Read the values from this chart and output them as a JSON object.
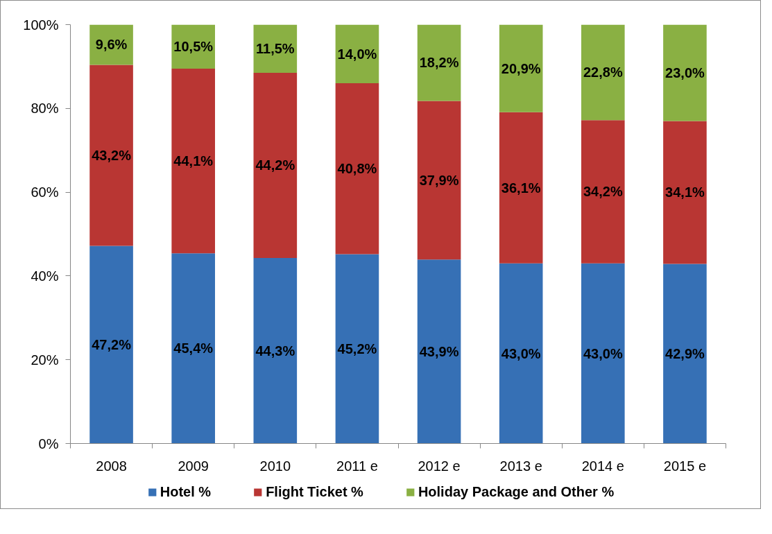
{
  "chart_data": {
    "type": "bar",
    "stacked": true,
    "categories": [
      "2008",
      "2009",
      "2010",
      "2011 e",
      "2012 e",
      "2013 e",
      "2014 e",
      "2015 e"
    ],
    "series": [
      {
        "name": "Hotel %",
        "color": "#3670b5",
        "values": [
          47.2,
          45.4,
          44.3,
          45.2,
          43.9,
          43.0,
          43.0,
          42.9
        ],
        "value_labels": [
          "47,2%",
          "45,4%",
          "44,3%",
          "45,2%",
          "43,9%",
          "43,0%",
          "43,0%",
          "42,9%"
        ]
      },
      {
        "name": "Flight Ticket %",
        "color": "#b93633",
        "values": [
          43.2,
          44.1,
          44.2,
          40.8,
          37.9,
          36.1,
          34.2,
          34.1
        ],
        "value_labels": [
          "43,2%",
          "44,1%",
          "44,2%",
          "40,8%",
          "37,9%",
          "36,1%",
          "34,2%",
          "34,1%"
        ]
      },
      {
        "name": "Holiday Package and Other %",
        "color": "#8ab043",
        "values": [
          9.6,
          10.5,
          11.5,
          14.0,
          18.2,
          20.9,
          22.8,
          23.0
        ],
        "value_labels": [
          "9,6%",
          "10,5%",
          "11,5%",
          "14,0%",
          "18,2%",
          "20,9%",
          "22,8%",
          "23,0%"
        ]
      }
    ],
    "ylim": [
      0,
      100
    ],
    "yticks": [
      {
        "value": 0,
        "label": "0%"
      },
      {
        "value": 20,
        "label": "20%"
      },
      {
        "value": 40,
        "label": "40%"
      },
      {
        "value": 60,
        "label": "60%"
      },
      {
        "value": 80,
        "label": "80%"
      },
      {
        "value": 100,
        "label": "100%"
      }
    ],
    "legend": "bottom"
  }
}
